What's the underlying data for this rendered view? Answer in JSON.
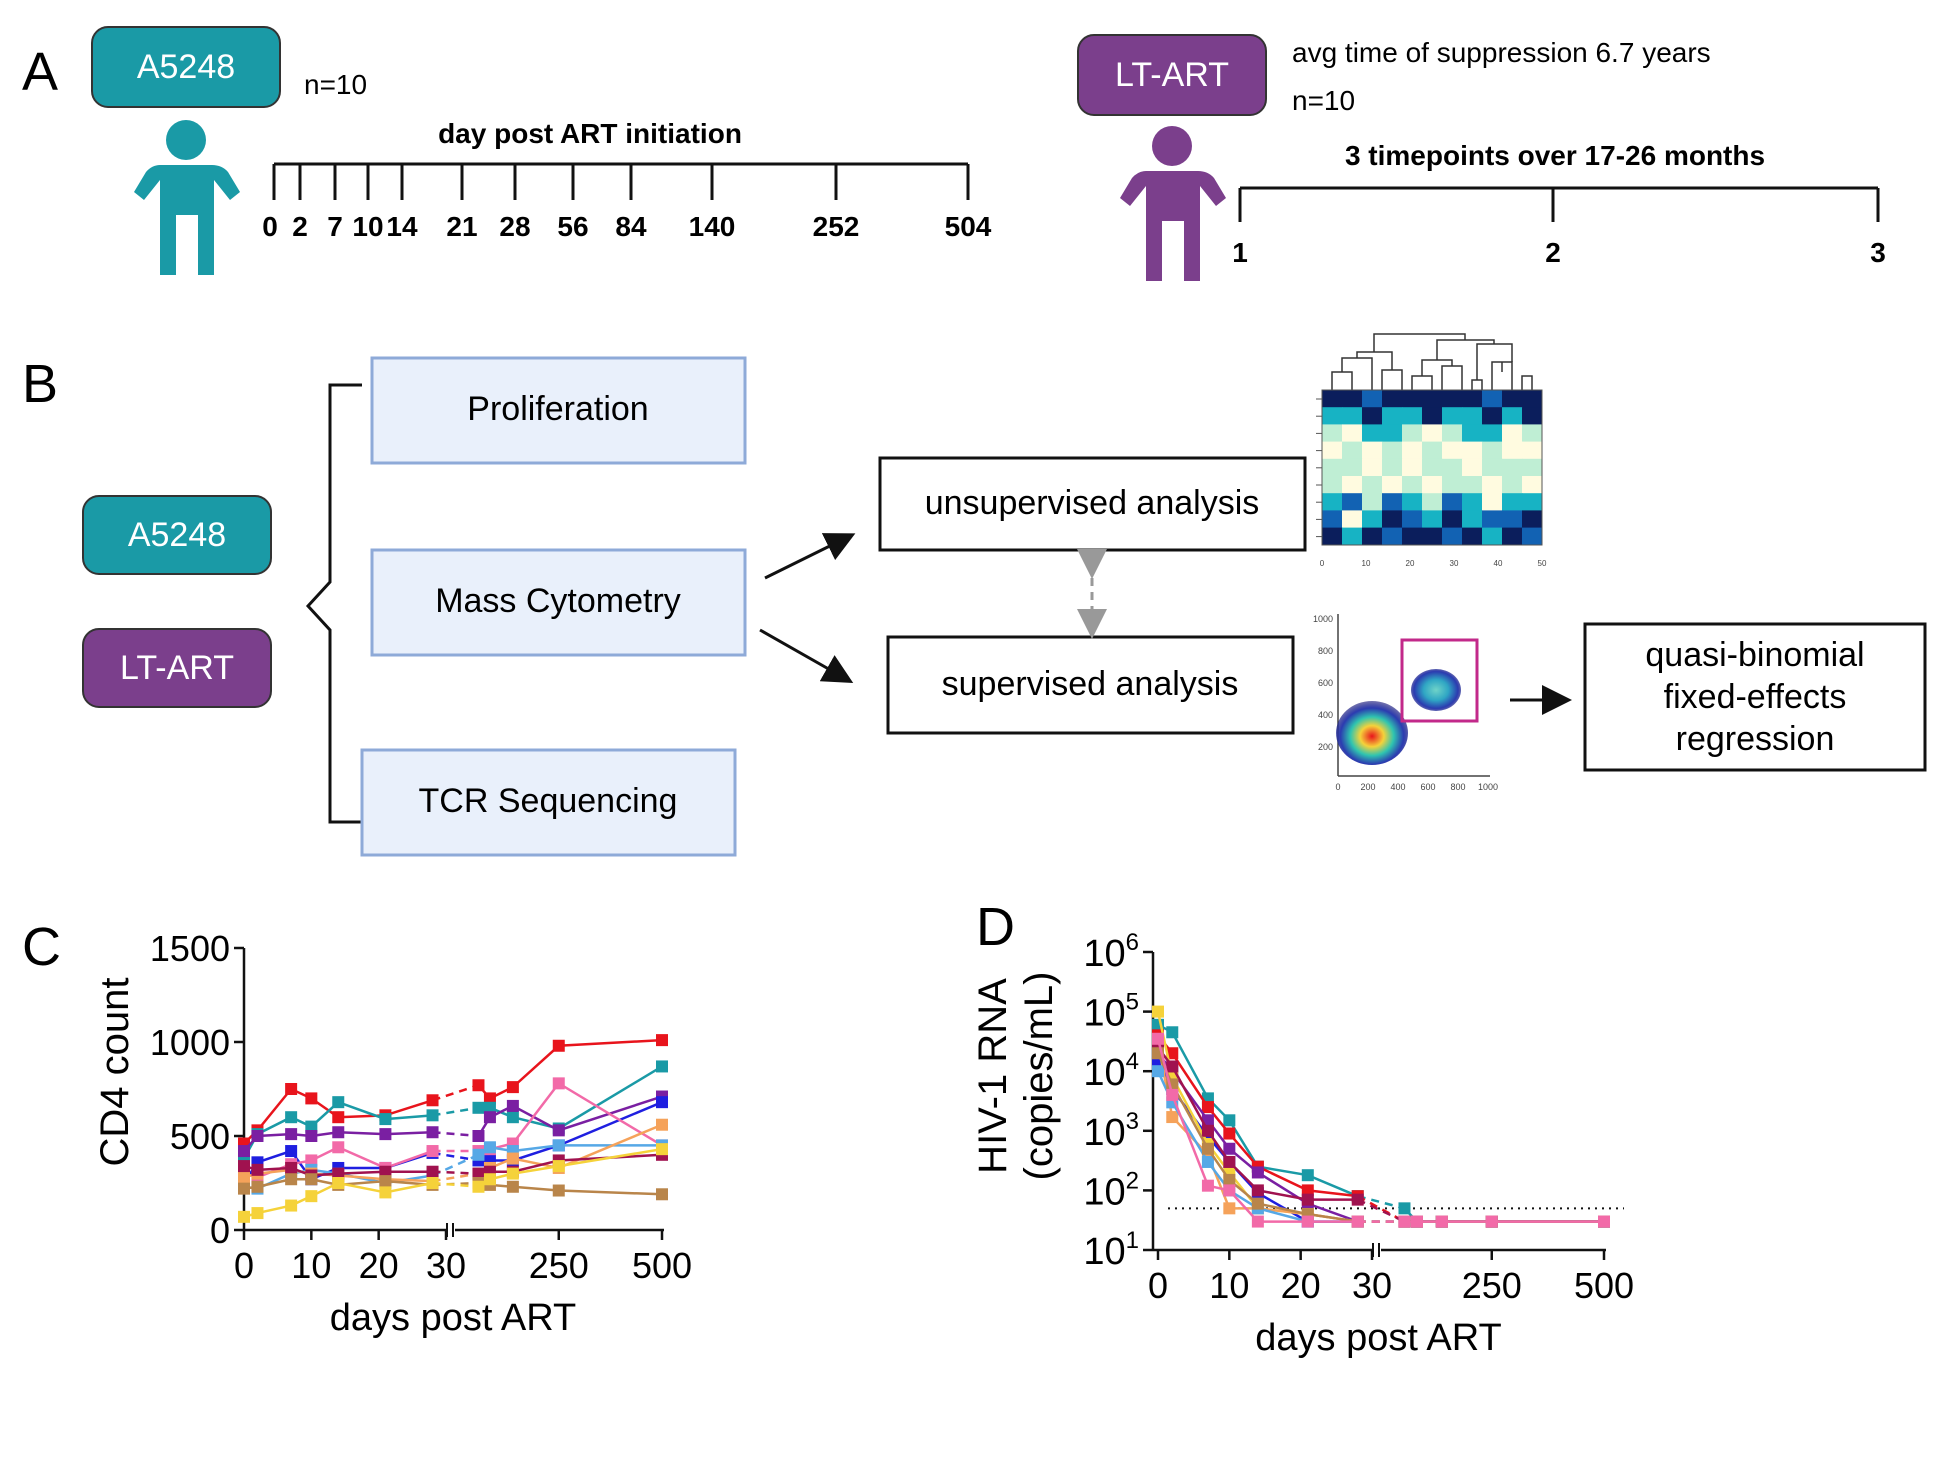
{
  "panels": {
    "a": "A",
    "b": "B",
    "c": "C",
    "d": "D"
  },
  "colors": {
    "teal": "#1a9aa6",
    "purple": "#7b3f8c",
    "box_fill": "#e9f0fb",
    "box_border": "#8eaad8"
  },
  "icons": {
    "person": "person-icon",
    "arrow": "arrow-icon",
    "heatmap": "heatmap-thumbnail",
    "flow": "flow-cytometry-thumbnail"
  },
  "panel_a": {
    "left": {
      "cohort": "A5248",
      "n": "n=10",
      "timeline_title": "day post ART initiation",
      "ticks": [
        "0",
        "2",
        "7",
        "10",
        "14",
        "21",
        "28",
        "56",
        "84",
        "140",
        "252",
        "504"
      ]
    },
    "right": {
      "cohort": "LT-ART",
      "suppression": "avg time of suppression 6.7 years",
      "n": "n=10",
      "timeline_title": "3 timepoints over 17-26 months",
      "ticks": [
        "1",
        "2",
        "3"
      ]
    }
  },
  "panel_b": {
    "cohorts": [
      "A5248",
      "LT-ART"
    ],
    "assays": [
      "Proliferation",
      "Mass Cytometry",
      "TCR Sequencing"
    ],
    "unsupervised": "unsupervised analysis",
    "supervised": "supervised analysis",
    "regression": [
      "quasi-binomial",
      "fixed-effects",
      "regression"
    ],
    "heatmap_axis": [
      "0",
      "10",
      "20",
      "30",
      "40",
      "50"
    ],
    "flow_x": [
      "0",
      "200",
      "400",
      "600",
      "800",
      "1000"
    ],
    "flow_y": [
      "1000",
      "800",
      "600",
      "400",
      "200"
    ]
  },
  "chart_data": [
    {
      "type": "line",
      "panel": "C",
      "xlabel": "days post ART",
      "ylabel": "CD4 count",
      "x_ticks": [
        "0",
        "10",
        "20",
        "30",
        "250",
        "500"
      ],
      "y_ticks": [
        "0",
        "500",
        "1000",
        "1500"
      ],
      "ylim": [
        0,
        1500
      ],
      "x": [
        0,
        2,
        7,
        10,
        14,
        21,
        28,
        56,
        84,
        140,
        252,
        504
      ],
      "series": [
        {
          "color": "#e8141c",
          "values": [
            460,
            530,
            750,
            700,
            600,
            610,
            690,
            770,
            700,
            760,
            980,
            1010
          ]
        },
        {
          "color": "#1a9aa6",
          "values": [
            380,
            510,
            600,
            550,
            680,
            590,
            610,
            650,
            650,
            600,
            540,
            870
          ]
        },
        {
          "color": "#7a1fa2",
          "values": [
            420,
            500,
            510,
            500,
            520,
            510,
            520,
            500,
            600,
            660,
            530,
            710
          ]
        },
        {
          "color": "#1f1fe0",
          "values": [
            250,
            360,
            420,
            270,
            330,
            330,
            410,
            370,
            370,
            370,
            450,
            680
          ]
        },
        {
          "color": "#f26aa8",
          "values": [
            300,
            280,
            350,
            370,
            440,
            330,
            420,
            420,
            430,
            460,
            780,
            450
          ]
        },
        {
          "color": "#56a8e6",
          "values": [
            230,
            220,
            300,
            320,
            300,
            250,
            290,
            400,
            440,
            420,
            450,
            450
          ]
        },
        {
          "color": "#f5a25a",
          "values": [
            280,
            300,
            320,
            300,
            290,
            270,
            260,
            300,
            330,
            380,
            330,
            560
          ]
        },
        {
          "color": "#a0124f",
          "values": [
            340,
            320,
            330,
            290,
            300,
            310,
            310,
            300,
            310,
            310,
            370,
            400
          ]
        },
        {
          "color": "#b9854a",
          "values": [
            220,
            230,
            270,
            270,
            240,
            260,
            240,
            250,
            240,
            230,
            210,
            190
          ]
        },
        {
          "color": "#f5d23a",
          "values": [
            70,
            90,
            130,
            180,
            250,
            200,
            250,
            230,
            270,
            300,
            340,
            430
          ]
        }
      ]
    },
    {
      "type": "line",
      "panel": "D",
      "xlabel": "days post ART",
      "ylabel": [
        "HIV-1 RNA",
        "(copies/mL)"
      ],
      "x_ticks": [
        "0",
        "10",
        "20",
        "30",
        "250",
        "500"
      ],
      "y_ticks": [
        "1",
        "2",
        "3",
        "4",
        "5",
        "6"
      ],
      "y_tick_base": "10",
      "yscale": "log",
      "ylim": [
        10,
        1000000
      ],
      "reference_line": 50,
      "x": [
        0,
        2,
        7,
        10,
        14,
        21,
        28,
        56,
        84,
        140,
        252,
        504
      ],
      "series": [
        {
          "color": "#1a9aa6",
          "values": [
            60000,
            45000,
            3500,
            1500,
            250,
            180,
            80,
            50,
            30,
            30,
            30,
            30
          ]
        },
        {
          "color": "#e8141c",
          "values": [
            40000,
            20000,
            2500,
            900,
            250,
            100,
            80,
            30,
            30,
            30,
            30,
            30
          ]
        },
        {
          "color": "#7a1fa2",
          "values": [
            20000,
            10000,
            1500,
            500,
            200,
            60,
            30,
            30,
            30,
            30,
            30,
            30
          ]
        },
        {
          "color": "#1f1fe0",
          "values": [
            15000,
            5000,
            800,
            300,
            90,
            30,
            30,
            30,
            30,
            30,
            30,
            30
          ]
        },
        {
          "color": "#f5d23a",
          "values": [
            100000,
            8000,
            600,
            200,
            50,
            40,
            30,
            30,
            30,
            30,
            30,
            30
          ]
        },
        {
          "color": "#f5a25a",
          "values": [
            30000,
            1700,
            400,
            50,
            50,
            40,
            30,
            30,
            30,
            30,
            30,
            30
          ]
        },
        {
          "color": "#a0124f",
          "values": [
            25000,
            12000,
            1000,
            300,
            100,
            70,
            70,
            30,
            30,
            30,
            30,
            30
          ]
        },
        {
          "color": "#56a8e6",
          "values": [
            10000,
            3000,
            300,
            100,
            50,
            30,
            30,
            30,
            30,
            30,
            30,
            30
          ]
        },
        {
          "color": "#b9854a",
          "values": [
            20000,
            6000,
            500,
            150,
            60,
            40,
            30,
            30,
            30,
            30,
            30,
            30
          ]
        },
        {
          "color": "#f26aa8",
          "values": [
            35000,
            4000,
            120,
            100,
            30,
            30,
            30,
            30,
            30,
            30,
            30,
            30
          ]
        }
      ]
    }
  ]
}
